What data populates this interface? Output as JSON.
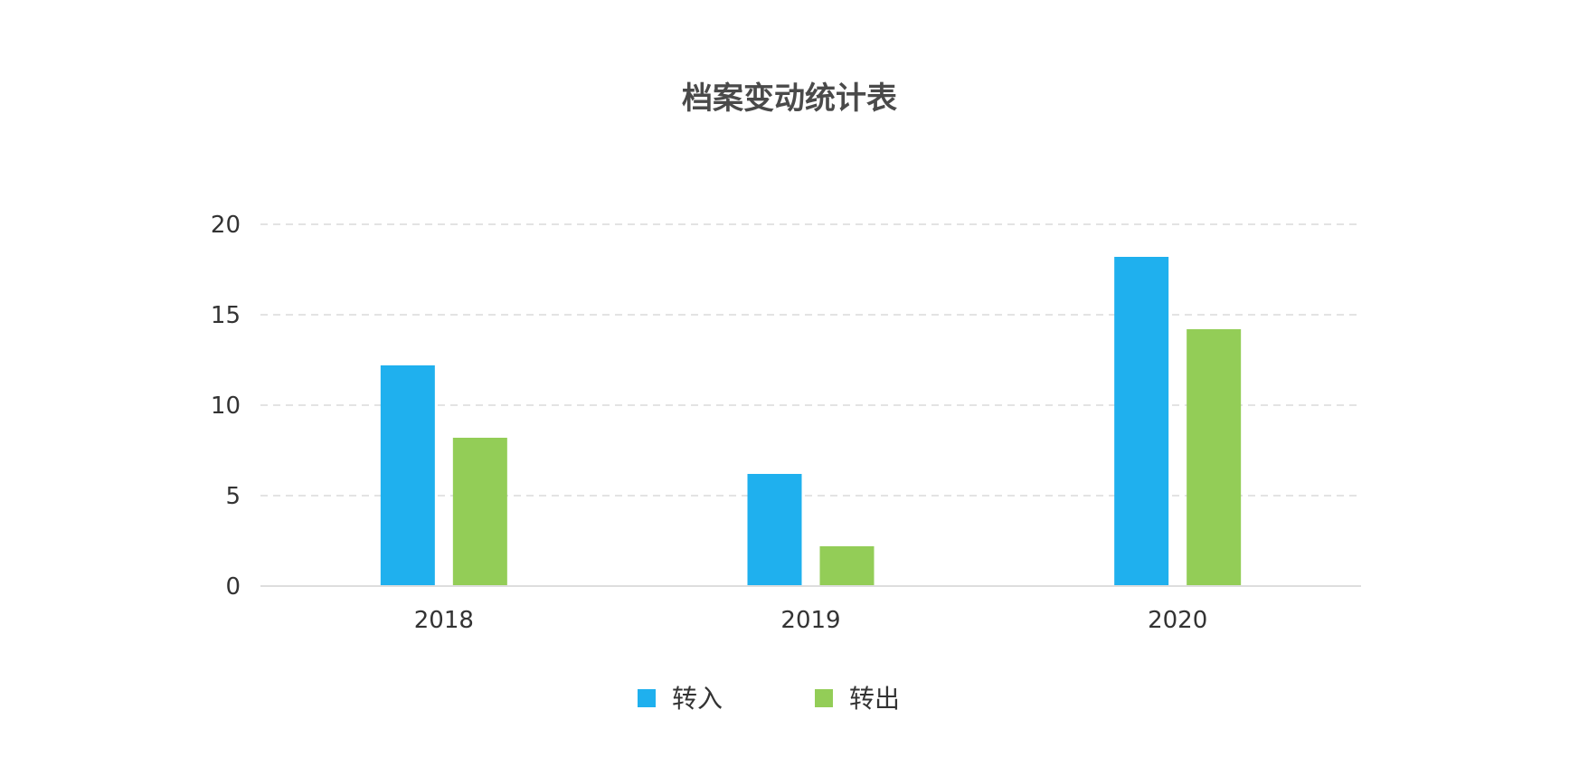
{
  "chart_data": {
    "type": "bar",
    "title": "档案变动统计表",
    "categories": [
      "2018",
      "2019",
      "2020"
    ],
    "series": [
      {
        "name": "转入",
        "values": [
          12.2,
          6.2,
          18.2
        ],
        "color": "#1fb0ee"
      },
      {
        "name": "转出",
        "values": [
          8.2,
          2.2,
          14.2
        ],
        "color": "#93cd57"
      }
    ],
    "yticks": [
      "0",
      "5",
      "10",
      "15",
      "20"
    ],
    "ylim": [
      0,
      20
    ],
    "grid": true,
    "legend": "bottom-center",
    "xlabel": "",
    "ylabel": ""
  }
}
